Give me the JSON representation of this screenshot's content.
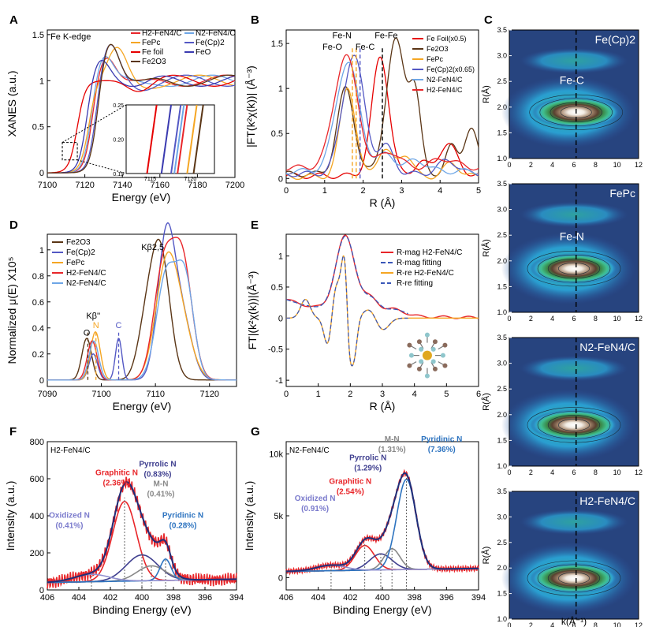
{
  "colors": {
    "h2": "#e8262a",
    "n2": "#6ea6e6",
    "fepc": "#f5a623",
    "fecp2": "#5358c4",
    "fefoil": "#e60000",
    "feo": "#3a3ab0",
    "fe2o3": "#5a3515",
    "blue": "#2e74c0",
    "purple": "#3f3f8f",
    "grey": "#888888",
    "fit": "#3a57b8",
    "navy": "#1f2f7a"
  },
  "chart_data": [
    {
      "panel": "A",
      "type": "line",
      "title": "Fe K-edge",
      "xlabel": "Energy (eV)",
      "ylabel": "XANES (a.u.)",
      "xlim": [
        7100,
        7200
      ],
      "ylim": [
        -0.05,
        1.55
      ],
      "xticks": [
        7100,
        7120,
        7140,
        7160,
        7180,
        7200
      ],
      "yticks": [
        0.0,
        0.5,
        1.0,
        1.5
      ],
      "legend": [
        "H2-FeN4/C",
        "N2-FeN4/C",
        "FePc",
        "Fe(Cp)2",
        "Fe foil",
        "FeO",
        "Fe2O3"
      ],
      "inset": {
        "xlim": [
          7112,
          7123
        ],
        "ylim": [
          0.15,
          0.25
        ],
        "xticks": [
          7115,
          7120
        ],
        "yticks": [
          0.15,
          0.2,
          0.25
        ]
      }
    },
    {
      "panel": "B",
      "type": "line",
      "xlabel": "R (Å)",
      "ylabel": "|FT(k²χ(k))| (Å⁻³)",
      "xlim": [
        0,
        5
      ],
      "ylim": [
        -0.05,
        1.65
      ],
      "xticks": [
        0,
        1,
        2,
        3,
        4,
        5
      ],
      "yticks": [
        0.0,
        0.5,
        1.0,
        1.5
      ],
      "legend": [
        "Fe Foil(x0.5)",
        "Fe2O3",
        "FePc",
        "Fe(Cp)2(x0.65)",
        "N2-FeN4/C",
        "H2-FeN4/C"
      ],
      "annotations": [
        "Fe-N",
        "Fe-O",
        "Fe-C",
        "Fe-Fe"
      ],
      "peaks": [
        {
          "name": "Fe-O",
          "r": 1.72
        },
        {
          "name": "Fe-N",
          "r": 1.82
        },
        {
          "name": "Fe-C",
          "r": 1.92
        },
        {
          "name": "Fe-Fe",
          "r": 2.5
        }
      ]
    },
    {
      "panel": "C",
      "type": "heatmap",
      "xlabel": "k(Å⁻¹)",
      "ylabel": "R(Å)",
      "xlim": [
        0,
        12
      ],
      "ylim": [
        1.0,
        3.5
      ],
      "xticks": [
        0,
        2,
        4,
        6,
        8,
        10,
        12
      ],
      "yticks": [
        1.0,
        1.5,
        2.0,
        2.5,
        3.0,
        3.5
      ],
      "subplots": [
        {
          "label": "Fe(Cp)2",
          "annotation": "Fe-C",
          "peak_k": 6.2,
          "peak_R": 1.9
        },
        {
          "label": "FePc",
          "annotation": "Fe-N",
          "peak_k": 6.0,
          "peak_R": 1.85
        },
        {
          "label": "N2-FeN4/C",
          "annotation": "",
          "peak_k": 6.0,
          "peak_R": 1.8
        },
        {
          "label": "H2-FeN4/C",
          "annotation": "",
          "peak_k": 6.0,
          "peak_R": 1.8
        }
      ],
      "dashed_k": 6.2
    },
    {
      "panel": "D",
      "type": "line",
      "xlabel": "Energy (eV)",
      "ylabel": "Normalized μ(E) X10⁵",
      "xlim": [
        7090,
        7125
      ],
      "ylim": [
        -0.05,
        1.12
      ],
      "xticks": [
        7090,
        7100,
        7110,
        7120
      ],
      "yticks": [
        0.0,
        0.2,
        0.4,
        0.6,
        0.8,
        1.0
      ],
      "legend": [
        "Fe2O3",
        "Fe(Cp)2",
        "FePc",
        "H2-FeN4/C",
        "N2-FeN4/C"
      ],
      "annotations": [
        "Kβ2,5",
        "Kβ''",
        "O",
        "N",
        "C"
      ]
    },
    {
      "panel": "E",
      "type": "line",
      "xlabel": "R (Å)",
      "ylabel": "FT|(k²χ(k))|(Å⁻³)",
      "xlim": [
        0,
        6
      ],
      "ylim": [
        -1.1,
        1.35
      ],
      "xticks": [
        0,
        1,
        2,
        3,
        4,
        5,
        6
      ],
      "yticks": [
        -1.0,
        -0.5,
        0.0,
        0.5,
        1.0
      ],
      "legend": [
        "R-mag H2-FeN4/C",
        "R-mag fitting",
        "R-re H2-FeN4/C",
        "R-re fitting"
      ]
    },
    {
      "panel": "F",
      "type": "line",
      "title": "H2-FeN4/C",
      "xlabel": "Binding Energy (eV)",
      "ylabel": "Intensity (a.u.)",
      "xlim": [
        406,
        394
      ],
      "ylim": [
        0,
        800
      ],
      "xticks": [
        406,
        404,
        402,
        400,
        398,
        396,
        394
      ],
      "yticks": [
        0,
        200,
        400,
        600,
        800
      ],
      "peaks": [
        {
          "name": "Graphitic N",
          "pct": "(2.36%)",
          "center": 401.1
        },
        {
          "name": "Pyrrolic N",
          "pct": "(0.83%)",
          "center": 400.0
        },
        {
          "name": "M-N",
          "pct": "(0.41%)",
          "center": 399.4
        },
        {
          "name": "Pyridinic N",
          "pct": "(0.28%)",
          "center": 398.5
        },
        {
          "name": "Oxidized N",
          "pct": "(0.41%)",
          "center": 403.2
        }
      ]
    },
    {
      "panel": "G",
      "type": "line",
      "title": "N2-FeN4/C",
      "xlabel": "Binding Energy (eV)",
      "ylabel": "Intensity (a.u.)",
      "xlim": [
        406,
        394
      ],
      "ylim": [
        -1000,
        11000
      ],
      "xticks": [
        406,
        404,
        402,
        400,
        398,
        396,
        394
      ],
      "yticks": [
        0,
        5000,
        10000
      ],
      "ytick_labels": [
        "0",
        "5k",
        "10k"
      ],
      "peaks": [
        {
          "name": "Graphitic N",
          "pct": "(2.54%)",
          "center": 401.1
        },
        {
          "name": "Pyrrolic N",
          "pct": "(1.29%)",
          "center": 400.1
        },
        {
          "name": "M-N",
          "pct": "(1.31%)",
          "center": 399.4
        },
        {
          "name": "Pyridinic N",
          "pct": "(7.36%)",
          "center": 398.5
        },
        {
          "name": "Oxidized N",
          "pct": "(0.91%)",
          "center": 403.2
        }
      ]
    }
  ]
}
